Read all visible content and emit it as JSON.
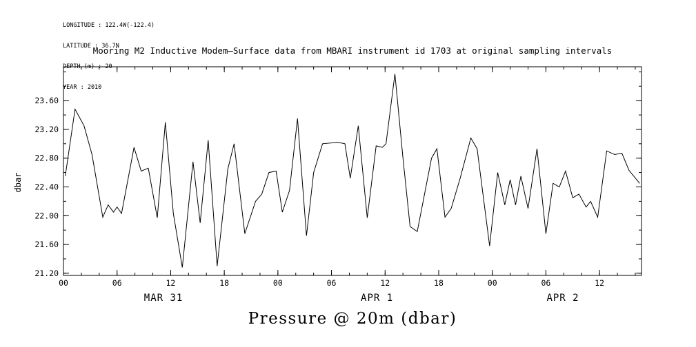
{
  "metadata": {
    "lines": [
      "LONGITUDE : 122.4W(-122.4)",
      "LATITUDE : 36.7N",
      "DEPTH (m) : 20",
      "YEAR : 2010"
    ]
  },
  "chart_data": {
    "type": "line",
    "title": "Mooring M2 Inductive Modem—Surface data from MBARI instrument id 1703 at original sampling intervals",
    "xlabel": "Pressure @ 20m (dbar)",
    "ylabel": "dbar",
    "line_color": "#000000",
    "grid": false,
    "legend": null,
    "xlim": [
      0,
      64.7
    ],
    "ylim": [
      21.17,
      24.07
    ],
    "x_tick_positions": [
      0,
      6,
      12,
      18,
      24,
      30,
      36,
      42,
      48,
      54,
      60
    ],
    "x_tick_labels": [
      "00",
      "06",
      "12",
      "18",
      "00",
      "06",
      "12",
      "18",
      "00",
      "06",
      "12"
    ],
    "y_tick_values": [
      21.2,
      21.6,
      22.0,
      22.4,
      22.8,
      23.2,
      23.6
    ],
    "y_tick_labels": [
      "21.20",
      "21.60",
      "22.00",
      "22.40",
      "22.80",
      "23.20",
      "23.60"
    ],
    "x_minor_step": 2,
    "y_minor_step": 0.2,
    "day_labels": [
      {
        "pos": 11.2,
        "label": "MAR 31"
      },
      {
        "pos": 35.1,
        "label": "APR 1"
      },
      {
        "pos": 55.9,
        "label": "APR 2"
      }
    ],
    "x_unit": "hour of day",
    "x": [
      0.2,
      1.3,
      2.3,
      3.2,
      4.4,
      5.0,
      5.6,
      6.0,
      6.5,
      7.9,
      8.7,
      9.5,
      10.5,
      11.4,
      12.3,
      13.3,
      14.5,
      15.3,
      16.2,
      17.2,
      18.4,
      19.1,
      20.3,
      21.5,
      22.2,
      23.0,
      23.8,
      24.5,
      25.3,
      26.2,
      27.2,
      28.0,
      29.0,
      30.7,
      31.5,
      32.1,
      33.0,
      34.0,
      35.0,
      35.7,
      36.1,
      37.1,
      38.0,
      38.8,
      39.6,
      41.2,
      41.8,
      42.7,
      43.4,
      44.4,
      45.6,
      46.3,
      47.7,
      48.6,
      49.4,
      50.0,
      50.6,
      51.2,
      52.0,
      53.0,
      54.0,
      54.8,
      55.5,
      56.2,
      57.0,
      57.7,
      58.5,
      59.0,
      59.8,
      60.8,
      61.7,
      62.5,
      63.3,
      64.5
    ],
    "values": [
      22.55,
      23.48,
      23.25,
      22.85,
      21.98,
      22.15,
      22.05,
      22.12,
      22.03,
      22.95,
      22.62,
      22.66,
      21.97,
      23.3,
      22.03,
      21.28,
      22.75,
      21.9,
      23.05,
      21.3,
      22.65,
      23.0,
      21.75,
      22.2,
      22.3,
      22.6,
      22.62,
      22.05,
      22.35,
      23.35,
      21.72,
      22.6,
      23.0,
      23.02,
      23.0,
      22.52,
      23.25,
      21.97,
      22.97,
      22.95,
      23.0,
      23.97,
      22.8,
      21.85,
      21.78,
      22.8,
      22.93,
      21.98,
      22.1,
      22.52,
      23.08,
      22.93,
      21.58,
      22.6,
      22.15,
      22.5,
      22.15,
      22.55,
      22.1,
      22.93,
      21.75,
      22.45,
      22.4,
      22.62,
      22.25,
      22.3,
      22.12,
      22.2,
      21.98,
      22.9,
      22.85,
      22.87,
      22.63,
      22.45
    ]
  }
}
